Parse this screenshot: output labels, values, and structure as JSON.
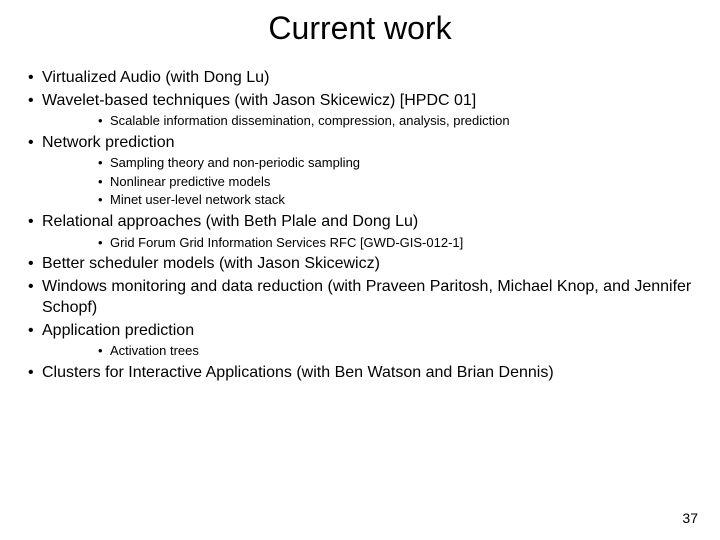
{
  "title": "Current work",
  "items": [
    {
      "level": 1,
      "text": "Virtualized Audio  (with Dong Lu)"
    },
    {
      "level": 1,
      "text": "Wavelet-based techniques (with Jason Skicewicz) [HPDC 01]"
    },
    {
      "level": 2,
      "text": "Scalable information dissemination, compression, analysis, prediction"
    },
    {
      "level": 1,
      "text": "Network prediction"
    },
    {
      "level": 2,
      "text": "Sampling theory and non-periodic sampling"
    },
    {
      "level": 2,
      "text": "Nonlinear predictive models"
    },
    {
      "level": 2,
      "text": "Minet user-level network stack"
    },
    {
      "level": 1,
      "text": "Relational approaches (with Beth Plale and Dong Lu)"
    },
    {
      "level": 2,
      "text": "Grid Forum Grid Information Services RFC [GWD-GIS-012-1]"
    },
    {
      "level": 1,
      "text": "Better scheduler models (with Jason Skicewicz)"
    },
    {
      "level": 1,
      "text": "Windows monitoring and data reduction (with Praveen Paritosh, Michael Knop, and Jennifer Schopf)"
    },
    {
      "level": 1,
      "text": "Application prediction"
    },
    {
      "level": 2,
      "text": "Activation trees"
    },
    {
      "level": 1,
      "text": "Clusters for Interactive Applications (with Ben Watson and Brian Dennis)"
    }
  ],
  "page_number": "37",
  "style": {
    "background_color": "#ffffff",
    "text_color": "#000000",
    "title_fontsize": 32,
    "l1_fontsize": 16,
    "l2_fontsize": 13,
    "font_family": "Arial"
  }
}
